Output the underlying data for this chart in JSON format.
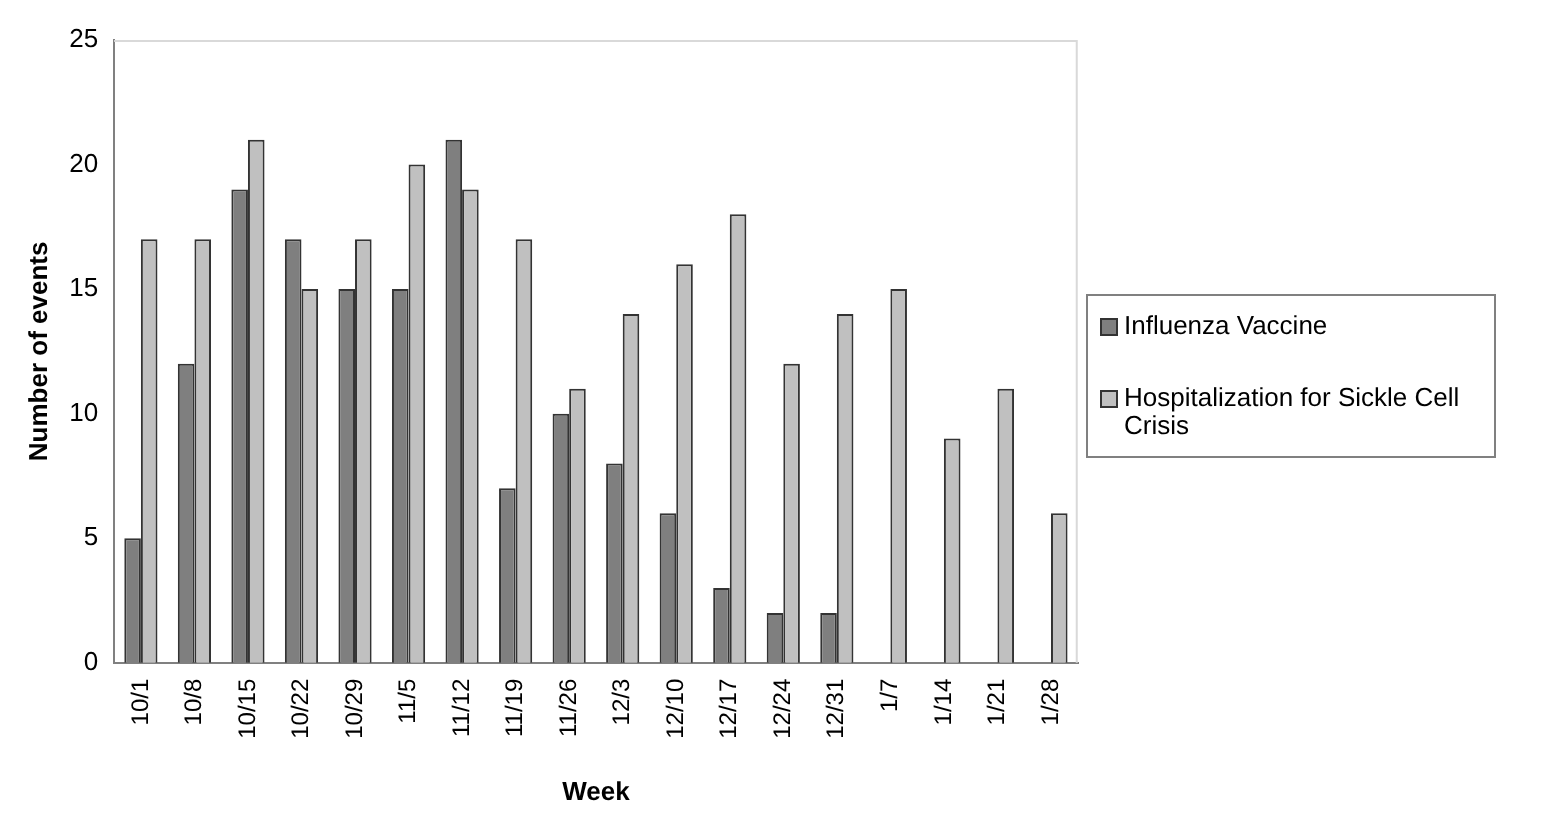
{
  "chart_data": {
    "type": "bar",
    "xlabel": "Week",
    "ylabel": "Number of events",
    "categories": [
      "10/1",
      "10/8",
      "10/15",
      "10/22",
      "10/29",
      "11/5",
      "11/12",
      "11/19",
      "11/26",
      "12/3",
      "12/10",
      "12/17",
      "12/24",
      "12/31",
      "1/7",
      "1/14",
      "1/21",
      "1/28"
    ],
    "series": [
      {
        "name": "Influenza Vaccine",
        "color": "#7f7f7f",
        "values": [
          5,
          12,
          19,
          17,
          15,
          15,
          21,
          7,
          10,
          8,
          6,
          3,
          2,
          2,
          0,
          0,
          0,
          0
        ]
      },
      {
        "name": "Hospitalization for Sickle Cell Crisis",
        "color": "#c0c0c0",
        "values": [
          17,
          17,
          21,
          15,
          17,
          20,
          19,
          17,
          11,
          14,
          16,
          18,
          12,
          14,
          15,
          9,
          11,
          6
        ]
      }
    ],
    "ylim": [
      0,
      25
    ],
    "yticks": [
      0,
      5,
      10,
      15,
      20,
      25
    ],
    "grid": false,
    "legend": "right"
  }
}
